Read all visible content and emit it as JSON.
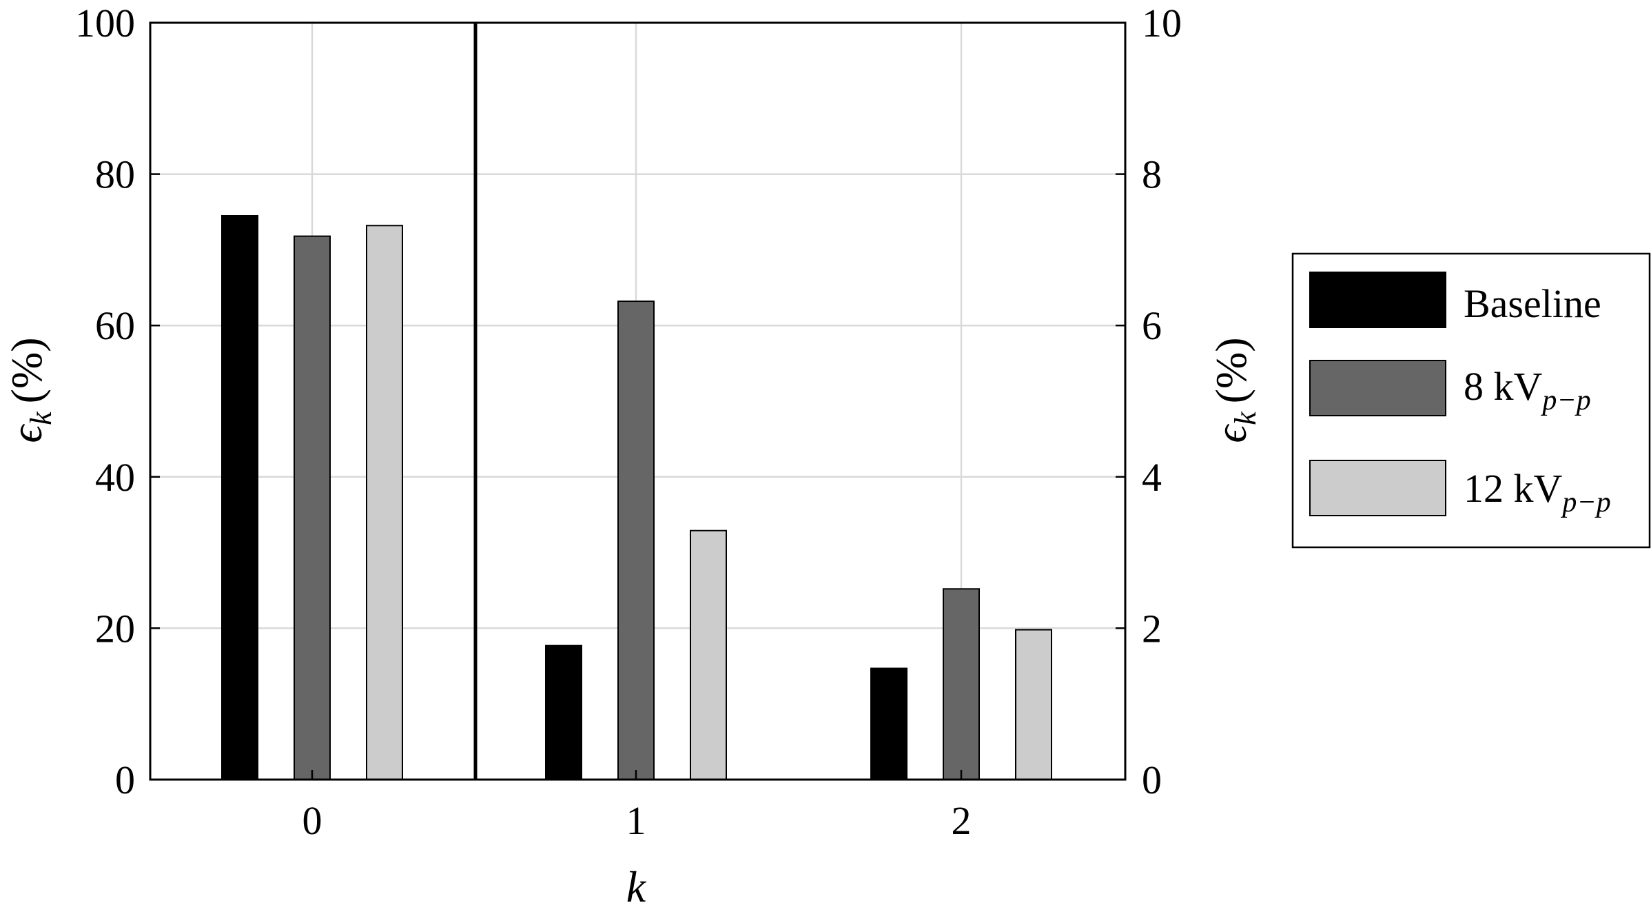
{
  "chart_data": {
    "type": "bar",
    "categories": [
      "0",
      "1",
      "2"
    ],
    "x_label_main": "k",
    "y_label_main": "ϵ",
    "y_label_sub": "k",
    "y_label_unit": "(%)",
    "left_axis": {
      "ylim": [
        0,
        100
      ],
      "ticks": [
        "0",
        "20",
        "40",
        "60",
        "80",
        "100"
      ],
      "applies_to": [
        "0"
      ]
    },
    "right_axis": {
      "ylim": [
        0,
        10
      ],
      "ticks": [
        "0",
        "2",
        "4",
        "6",
        "8",
        "10"
      ],
      "applies_to": [
        "1",
        "2"
      ]
    },
    "grid": true,
    "legend_placement": "right",
    "series": [
      {
        "name": "Baseline",
        "name_main": "Baseline",
        "name_sub": "",
        "color": "#000000",
        "values": [
          74.5,
          1.77,
          1.47
        ]
      },
      {
        "name": "8 kVp−p",
        "name_main": "8 kV",
        "name_sub": "p−p",
        "color": "#666666",
        "values": [
          71.8,
          6.32,
          2.52
        ]
      },
      {
        "name": "12 kVp−p",
        "name_main": "12 kV",
        "name_sub": "p−p",
        "color": "#cccccc",
        "values": [
          73.2,
          3.29,
          1.98
        ]
      }
    ]
  }
}
